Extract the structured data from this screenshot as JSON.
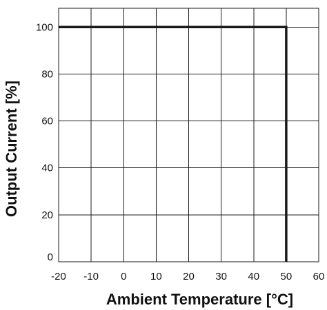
{
  "chart_data": {
    "type": "line",
    "title": "",
    "xlabel": "Ambient Temperature [°C]",
    "ylabel": "Output Current [%]",
    "xlim": [
      -20,
      60
    ],
    "ylim": [
      0,
      108
    ],
    "xticks": [
      -20,
      -10,
      0,
      10,
      20,
      30,
      40,
      50,
      60
    ],
    "yticks": [
      0,
      20,
      40,
      60,
      80,
      100
    ],
    "grid": true,
    "series": [
      {
        "x": [
          -20,
          50,
          50
        ],
        "y": [
          100,
          100,
          0
        ],
        "color": "#1a1a1a"
      }
    ]
  }
}
